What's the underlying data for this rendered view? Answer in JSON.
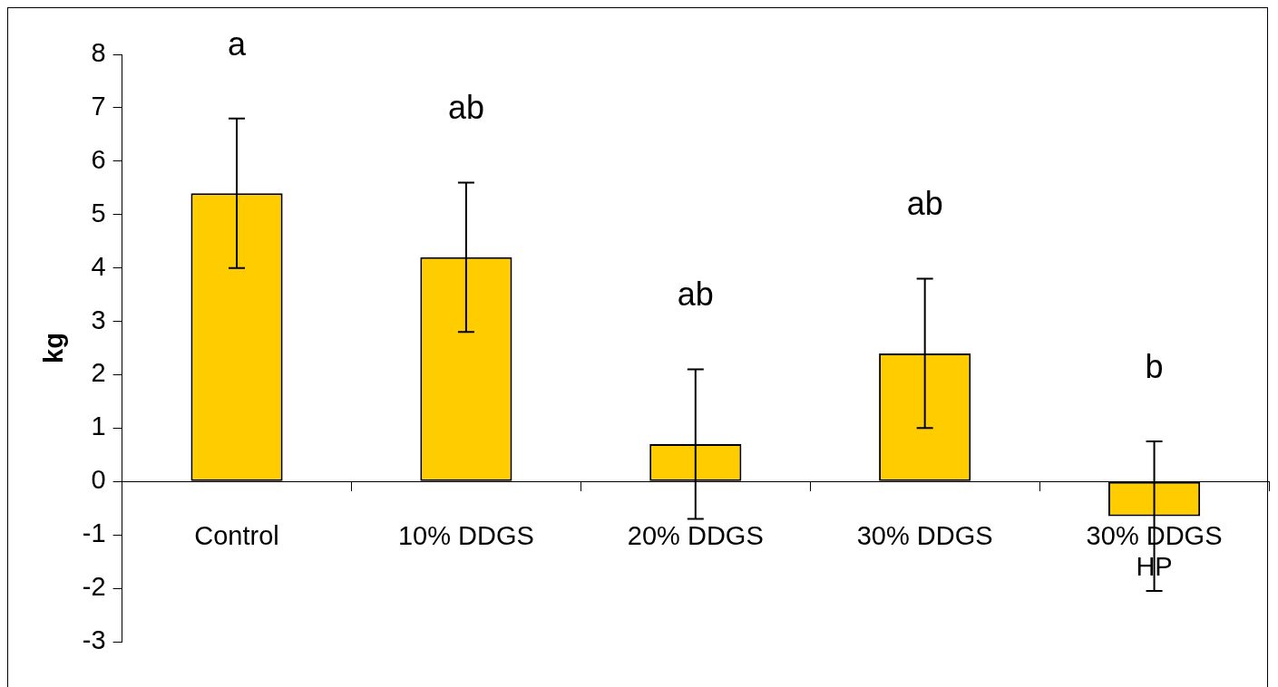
{
  "chart_data": {
    "type": "bar",
    "ylabel": "kg",
    "categories": [
      "Control",
      "10% DDGS",
      "20% DDGS",
      "30% DDGS",
      "30% DDGS HP"
    ],
    "values": [
      5.4,
      4.2,
      0.7,
      2.4,
      -0.65
    ],
    "errors": [
      1.4,
      1.4,
      1.4,
      1.4,
      1.4
    ],
    "color": "#ffcc00",
    "ylim": [
      -3,
      8
    ],
    "yticks": [
      -3,
      -2,
      -1,
      0,
      1,
      2,
      3,
      4,
      5,
      6,
      7,
      8
    ],
    "grid": false,
    "legend": false,
    "annotations": [
      "a",
      "ab",
      "ab",
      "ab",
      "b"
    ]
  }
}
